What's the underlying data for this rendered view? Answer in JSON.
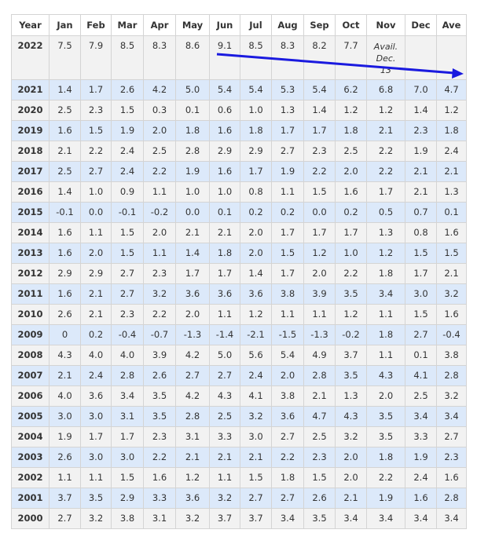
{
  "chart_data": {
    "type": "table",
    "columns": [
      "Year",
      "Jan",
      "Feb",
      "Mar",
      "Apr",
      "May",
      "Jun",
      "Jul",
      "Aug",
      "Sep",
      "Oct",
      "Nov",
      "Dec",
      "Ave"
    ],
    "rows": [
      [
        "2022",
        "7.5",
        "7.9",
        "8.5",
        "8.3",
        "8.6",
        "9.1",
        "8.5",
        "8.3",
        "8.2",
        "7.7",
        "Avail. Dec. 13",
        "",
        ""
      ],
      [
        "2021",
        "1.4",
        "1.7",
        "2.6",
        "4.2",
        "5.0",
        "5.4",
        "5.4",
        "5.3",
        "5.4",
        "6.2",
        "6.8",
        "7.0",
        "4.7"
      ],
      [
        "2020",
        "2.5",
        "2.3",
        "1.5",
        "0.3",
        "0.1",
        "0.6",
        "1.0",
        "1.3",
        "1.4",
        "1.2",
        "1.2",
        "1.4",
        "1.2"
      ],
      [
        "2019",
        "1.6",
        "1.5",
        "1.9",
        "2.0",
        "1.8",
        "1.6",
        "1.8",
        "1.7",
        "1.7",
        "1.8",
        "2.1",
        "2.3",
        "1.8"
      ],
      [
        "2018",
        "2.1",
        "2.2",
        "2.4",
        "2.5",
        "2.8",
        "2.9",
        "2.9",
        "2.7",
        "2.3",
        "2.5",
        "2.2",
        "1.9",
        "2.4"
      ],
      [
        "2017",
        "2.5",
        "2.7",
        "2.4",
        "2.2",
        "1.9",
        "1.6",
        "1.7",
        "1.9",
        "2.2",
        "2.0",
        "2.2",
        "2.1",
        "2.1"
      ],
      [
        "2016",
        "1.4",
        "1.0",
        "0.9",
        "1.1",
        "1.0",
        "1.0",
        "0.8",
        "1.1",
        "1.5",
        "1.6",
        "1.7",
        "2.1",
        "1.3"
      ],
      [
        "2015",
        "-0.1",
        "0.0",
        "-0.1",
        "-0.2",
        "0.0",
        "0.1",
        "0.2",
        "0.2",
        "0.0",
        "0.2",
        "0.5",
        "0.7",
        "0.1"
      ],
      [
        "2014",
        "1.6",
        "1.1",
        "1.5",
        "2.0",
        "2.1",
        "2.1",
        "2.0",
        "1.7",
        "1.7",
        "1.7",
        "1.3",
        "0.8",
        "1.6"
      ],
      [
        "2013",
        "1.6",
        "2.0",
        "1.5",
        "1.1",
        "1.4",
        "1.8",
        "2.0",
        "1.5",
        "1.2",
        "1.0",
        "1.2",
        "1.5",
        "1.5"
      ],
      [
        "2012",
        "2.9",
        "2.9",
        "2.7",
        "2.3",
        "1.7",
        "1.7",
        "1.4",
        "1.7",
        "2.0",
        "2.2",
        "1.8",
        "1.7",
        "2.1"
      ],
      [
        "2011",
        "1.6",
        "2.1",
        "2.7",
        "3.2",
        "3.6",
        "3.6",
        "3.6",
        "3.8",
        "3.9",
        "3.5",
        "3.4",
        "3.0",
        "3.2"
      ],
      [
        "2010",
        "2.6",
        "2.1",
        "2.3",
        "2.2",
        "2.0",
        "1.1",
        "1.2",
        "1.1",
        "1.1",
        "1.2",
        "1.1",
        "1.5",
        "1.6"
      ],
      [
        "2009",
        "0",
        "0.2",
        "-0.4",
        "-0.7",
        "-1.3",
        "-1.4",
        "-2.1",
        "-1.5",
        "-1.3",
        "-0.2",
        "1.8",
        "2.7",
        "-0.4"
      ],
      [
        "2008",
        "4.3",
        "4.0",
        "4.0",
        "3.9",
        "4.2",
        "5.0",
        "5.6",
        "5.4",
        "4.9",
        "3.7",
        "1.1",
        "0.1",
        "3.8"
      ],
      [
        "2007",
        "2.1",
        "2.4",
        "2.8",
        "2.6",
        "2.7",
        "2.7",
        "2.4",
        "2.0",
        "2.8",
        "3.5",
        "4.3",
        "4.1",
        "2.8"
      ],
      [
        "2006",
        "4.0",
        "3.6",
        "3.4",
        "3.5",
        "4.2",
        "4.3",
        "4.1",
        "3.8",
        "2.1",
        "1.3",
        "2.0",
        "2.5",
        "3.2"
      ],
      [
        "2005",
        "3.0",
        "3.0",
        "3.1",
        "3.5",
        "2.8",
        "2.5",
        "3.2",
        "3.6",
        "4.7",
        "4.3",
        "3.5",
        "3.4",
        "3.4"
      ],
      [
        "2004",
        "1.9",
        "1.7",
        "1.7",
        "2.3",
        "3.1",
        "3.3",
        "3.0",
        "2.7",
        "2.5",
        "3.2",
        "3.5",
        "3.3",
        "2.7"
      ],
      [
        "2003",
        "2.6",
        "3.0",
        "3.0",
        "2.2",
        "2.1",
        "2.1",
        "2.1",
        "2.2",
        "2.3",
        "2.0",
        "1.8",
        "1.9",
        "2.3"
      ],
      [
        "2002",
        "1.1",
        "1.1",
        "1.5",
        "1.6",
        "1.2",
        "1.1",
        "1.5",
        "1.8",
        "1.5",
        "2.0",
        "2.2",
        "2.4",
        "1.6"
      ],
      [
        "2001",
        "3.7",
        "3.5",
        "2.9",
        "3.3",
        "3.6",
        "3.2",
        "2.7",
        "2.7",
        "2.6",
        "2.1",
        "1.9",
        "1.6",
        "2.8"
      ],
      [
        "2000",
        "2.7",
        "3.2",
        "3.8",
        "3.1",
        "3.2",
        "3.7",
        "3.7",
        "3.4",
        "3.5",
        "3.4",
        "3.4",
        "3.4",
        "3.4"
      ]
    ],
    "annotation": {
      "type": "arrow",
      "color": "#1a1adf"
    }
  }
}
